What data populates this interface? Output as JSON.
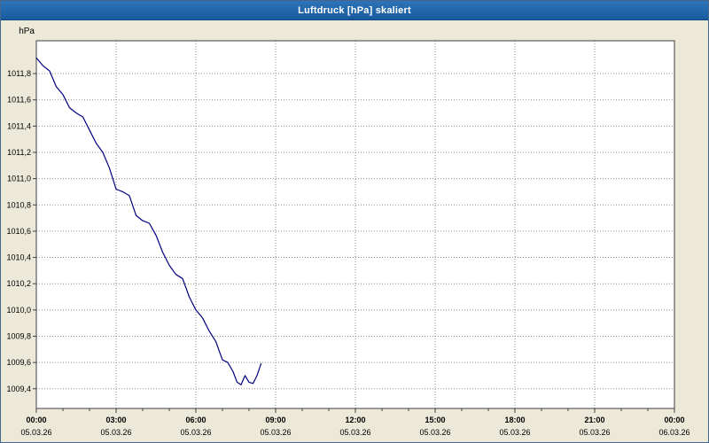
{
  "window": {
    "title": "Luftdruck [hPa] skaliert"
  },
  "colors": {
    "background": "#ece9d8",
    "plot_background": "#ffffff",
    "plot_border": "#404040",
    "grid": "#8a8a8a",
    "titlebar": "#1f63ae",
    "line": "#000080"
  },
  "chart_data": {
    "type": "line",
    "title": "Luftdruck [hPa] skaliert",
    "xlabel": "",
    "ylabel": "hPa",
    "xlim": [
      0,
      24
    ],
    "ylim": [
      1009.25,
      1012.05
    ],
    "grid": "dotted",
    "legend_position": "none",
    "x_ticks": [
      {
        "hour": 0,
        "time": "00:00",
        "date": "05.03.26"
      },
      {
        "hour": 3,
        "time": "03:00",
        "date": "05.03.26"
      },
      {
        "hour": 6,
        "time": "06:00",
        "date": "05.03.26"
      },
      {
        "hour": 9,
        "time": "09:00",
        "date": "05.03.26"
      },
      {
        "hour": 12,
        "time": "12:00",
        "date": "05.03.26"
      },
      {
        "hour": 15,
        "time": "15:00",
        "date": "05.03.26"
      },
      {
        "hour": 18,
        "time": "18:00",
        "date": "05.03.26"
      },
      {
        "hour": 21,
        "time": "21:00",
        "date": "05.03.26"
      },
      {
        "hour": 24,
        "time": "00:00",
        "date": "06.03.26"
      }
    ],
    "y_ticks": [
      {
        "value": 1011.8,
        "label": "1011,8"
      },
      {
        "value": 1011.6,
        "label": "1011,6"
      },
      {
        "value": 1011.4,
        "label": "1011,4"
      },
      {
        "value": 1011.2,
        "label": "1011,2"
      },
      {
        "value": 1011.0,
        "label": "1011,0"
      },
      {
        "value": 1010.8,
        "label": "1010,8"
      },
      {
        "value": 1010.6,
        "label": "1010,6"
      },
      {
        "value": 1010.4,
        "label": "1010,4"
      },
      {
        "value": 1010.2,
        "label": "1010,2"
      },
      {
        "value": 1010.0,
        "label": "1010,0"
      },
      {
        "value": 1009.8,
        "label": "1009,8"
      },
      {
        "value": 1009.6,
        "label": "1009,6"
      },
      {
        "value": 1009.4,
        "label": "1009,4"
      }
    ],
    "series": [
      {
        "name": "Luftdruck [hPa]",
        "color": "#000080",
        "x": [
          0,
          0.25,
          0.5,
          0.75,
          1,
          1.25,
          1.5,
          1.75,
          2,
          2.25,
          2.5,
          2.75,
          3,
          3.25,
          3.5,
          3.75,
          4,
          4.25,
          4.5,
          4.75,
          5,
          5.25,
          5.5,
          5.75,
          6,
          6.25,
          6.5,
          6.75,
          7,
          7.2,
          7.4,
          7.55,
          7.7,
          7.85,
          8,
          8.15,
          8.3,
          8.45
        ],
        "y": [
          1011.92,
          1011.86,
          1011.82,
          1011.7,
          1011.64,
          1011.54,
          1011.5,
          1011.47,
          1011.37,
          1011.27,
          1011.2,
          1011.08,
          1010.92,
          1010.9,
          1010.87,
          1010.72,
          1010.68,
          1010.66,
          1010.57,
          1010.44,
          1010.34,
          1010.27,
          1010.24,
          1010.1,
          1010.0,
          1009.94,
          1009.84,
          1009.76,
          1009.62,
          1009.6,
          1009.53,
          1009.45,
          1009.43,
          1009.5,
          1009.45,
          1009.44,
          1009.5,
          1009.59
        ]
      }
    ]
  }
}
